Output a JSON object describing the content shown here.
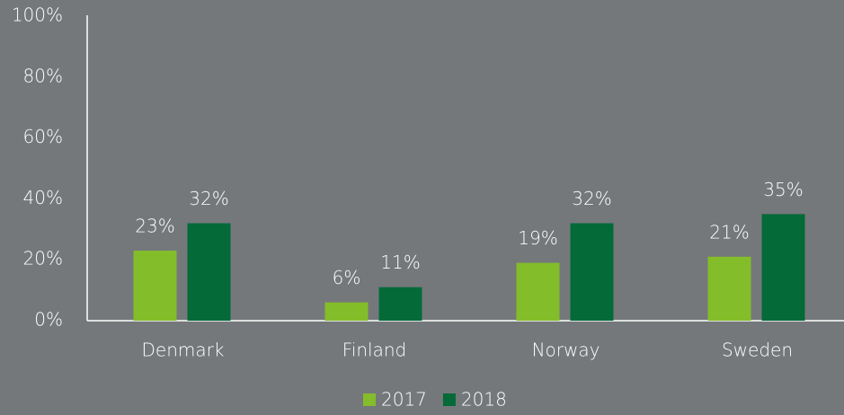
{
  "chart_data": {
    "type": "bar",
    "categories": [
      "Denmark",
      "Finland",
      "Norway",
      "Sweden"
    ],
    "series": [
      {
        "name": "2017",
        "color": "#84bd2a",
        "values": [
          23,
          6,
          19,
          21
        ],
        "value_labels": [
          "23%",
          "6%",
          "19%",
          "21%"
        ]
      },
      {
        "name": "2018",
        "color": "#046a38",
        "values": [
          32,
          11,
          32,
          35
        ],
        "value_labels": [
          "32%",
          "11%",
          "32%",
          "35%"
        ]
      }
    ],
    "ylim": [
      0,
      100
    ],
    "yticks": [
      {
        "value": 0,
        "label": "0%"
      },
      {
        "value": 20,
        "label": "20%"
      },
      {
        "value": 40,
        "label": "40%"
      },
      {
        "value": 60,
        "label": "60%"
      },
      {
        "value": 80,
        "label": "80%"
      },
      {
        "value": 100,
        "label": "100%"
      }
    ],
    "grid": false,
    "legend": "bottom"
  }
}
